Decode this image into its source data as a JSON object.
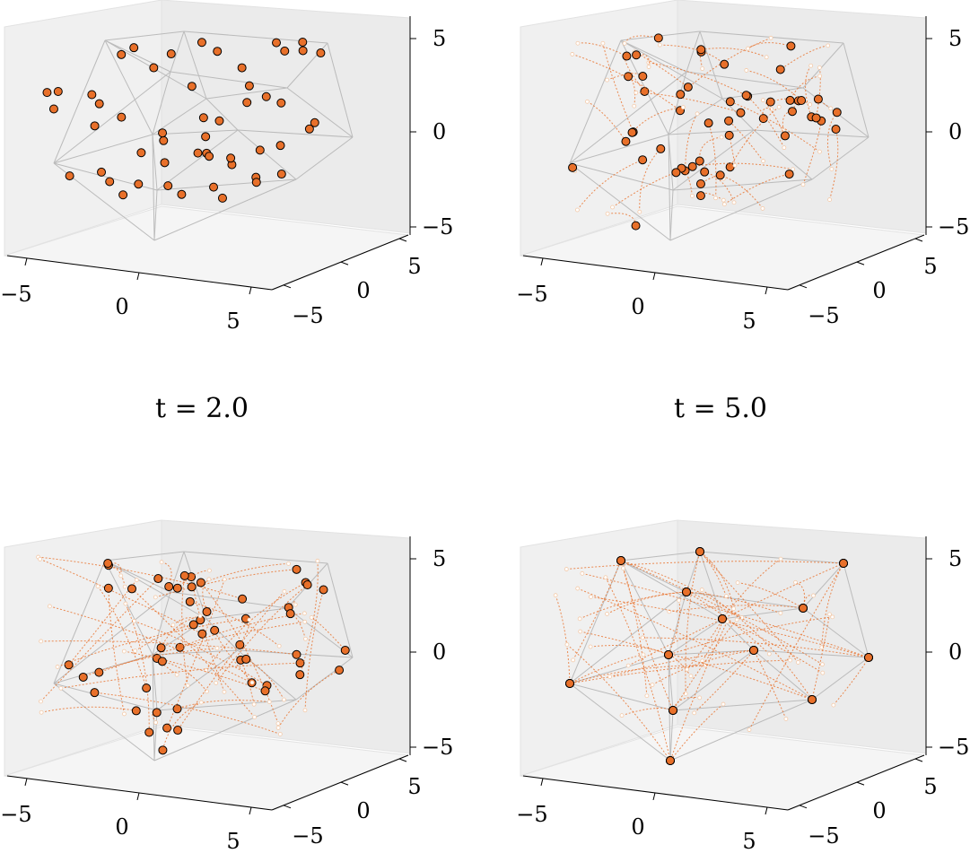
{
  "titles": [
    "t = 2.0",
    "t = 5.0"
  ],
  "chart_data": [
    {
      "type": "scatter",
      "panel": "top-left",
      "xlim": [
        -6,
        6
      ],
      "ylim": [
        -6,
        6
      ],
      "zlim": [
        -6,
        6
      ],
      "x_ticks": [
        "−5",
        "0",
        "5"
      ],
      "y_ticks": [
        "−5",
        "0",
        "5"
      ],
      "z_ticks": [
        "−5",
        "0",
        "5"
      ],
      "grid": false,
      "colors": {
        "node": "#e8702a",
        "node_edge": "#000000",
        "edge": "#bbbbbb",
        "trail": "#e8702a"
      }
    },
    {
      "type": "scatter",
      "panel": "top-right",
      "xlim": [
        -6,
        6
      ],
      "ylim": [
        -6,
        6
      ],
      "zlim": [
        -6,
        6
      ],
      "x_ticks": [
        "−5",
        "0",
        "5"
      ],
      "y_ticks": [
        "−5",
        "0",
        "5"
      ],
      "z_ticks": [
        "−5",
        "0",
        "5"
      ],
      "grid": false
    },
    {
      "type": "scatter",
      "panel": "bottom-left",
      "title": "t = 2.0",
      "xlim": [
        -6,
        6
      ],
      "ylim": [
        -6,
        6
      ],
      "zlim": [
        -6,
        6
      ],
      "x_ticks": [
        "−5",
        "0",
        "5"
      ],
      "y_ticks": [
        "−5",
        "0",
        "5"
      ],
      "z_ticks": [
        "−5",
        "0",
        "5"
      ],
      "grid": false
    },
    {
      "type": "scatter",
      "panel": "bottom-right",
      "title": "t = 5.0",
      "xlim": [
        -6,
        6
      ],
      "ylim": [
        -6,
        6
      ],
      "zlim": [
        -6,
        6
      ],
      "x_ticks": [
        "−5",
        "0",
        "5"
      ],
      "y_ticks": [
        "−5",
        "0",
        "5"
      ],
      "z_ticks": [
        "−5",
        "0",
        "5"
      ],
      "grid": false
    }
  ]
}
